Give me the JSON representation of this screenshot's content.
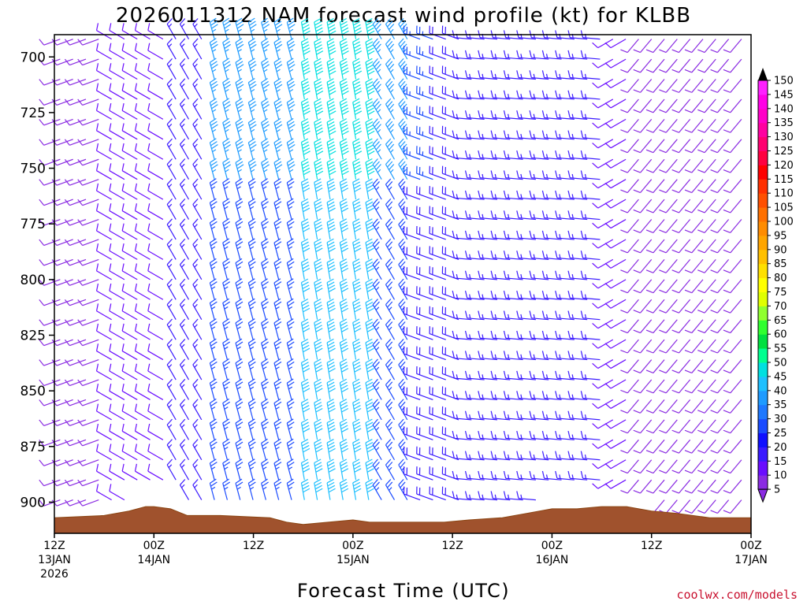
{
  "chart_data": {
    "type": "wind-barb profile",
    "title": "2026011312 NAM forecast wind profile (kt) for KLBB",
    "xlabel": "Forecast Time (UTC)",
    "ylabel": "",
    "y_ticks": [
      "700",
      "725",
      "750",
      "775",
      "800",
      "825",
      "850",
      "875",
      "900"
    ],
    "y_range_hpa": [
      690,
      914
    ],
    "x_ticks": [
      {
        "hour": 0,
        "line1": "12Z",
        "line2": "13JAN",
        "line3": "2026"
      },
      {
        "hour": 12,
        "line1": "00Z",
        "line2": "14JAN",
        "line3": ""
      },
      {
        "hour": 24,
        "line1": "12Z",
        "line2": "",
        "line3": ""
      },
      {
        "hour": 36,
        "line1": "00Z",
        "line2": "15JAN",
        "line3": ""
      },
      {
        "hour": 48,
        "line1": "12Z",
        "line2": "",
        "line3": ""
      },
      {
        "hour": 60,
        "line1": "00Z",
        "line2": "16JAN",
        "line3": ""
      },
      {
        "hour": 72,
        "line1": "12Z",
        "line2": "",
        "line3": ""
      },
      {
        "hour": 84,
        "line1": "00Z",
        "line2": "17JAN",
        "line3": ""
      }
    ],
    "x_range_hours": [
      0,
      84
    ],
    "colorbar": {
      "label_values": [
        "5",
        "10",
        "15",
        "20",
        "25",
        "30",
        "35",
        "40",
        "45",
        "50",
        "55",
        "60",
        "65",
        "70",
        "75",
        "80",
        "85",
        "90",
        "95",
        "100",
        "105",
        "110",
        "115",
        "120",
        "125",
        "130",
        "135",
        "140",
        "145",
        "150"
      ],
      "colors": [
        "#8a2be2",
        "#6a0dff",
        "#3a1aff",
        "#1010ff",
        "#1a4bff",
        "#1e78ff",
        "#1e9bff",
        "#1ec0ff",
        "#00e0e0",
        "#00ff90",
        "#00e040",
        "#30ff30",
        "#90ff30",
        "#e0ff00",
        "#ffff00",
        "#ffe000",
        "#ffc000",
        "#ffa500",
        "#ff8c00",
        "#ff7000",
        "#ff5000",
        "#ff3000",
        "#ff0000",
        "#ff0040",
        "#ff0070",
        "#ff00a0",
        "#ff00c8",
        "#ff00e6",
        "#ff20ff"
      ]
    },
    "terrain_top_hpa": [
      [
        0,
        907
      ],
      [
        6,
        906
      ],
      [
        9,
        904
      ],
      [
        11,
        902
      ],
      [
        12,
        902
      ],
      [
        14,
        903
      ],
      [
        16,
        906
      ],
      [
        20,
        906
      ],
      [
        26,
        907
      ],
      [
        28,
        909
      ],
      [
        30,
        910
      ],
      [
        33,
        909
      ],
      [
        36,
        908
      ],
      [
        38,
        909
      ],
      [
        42,
        909
      ],
      [
        47,
        909
      ],
      [
        50,
        908
      ],
      [
        54,
        907
      ],
      [
        57,
        905
      ],
      [
        60,
        903
      ],
      [
        63,
        903
      ],
      [
        66,
        902
      ],
      [
        69,
        902
      ],
      [
        72,
        904
      ],
      [
        75,
        905
      ],
      [
        79,
        907
      ],
      [
        84,
        907
      ]
    ],
    "wind_regimes": [
      {
        "h0": 0,
        "h1": 6,
        "dir": 250,
        "spd": 9
      },
      {
        "h0": 6,
        "h1": 14,
        "dir": 300,
        "spd": 12
      },
      {
        "h0": 14,
        "h1": 18,
        "dir": 330,
        "spd": 17
      },
      {
        "h0": 18,
        "h1": 30,
        "dir": 345,
        "spd": 27
      },
      {
        "h0": 30,
        "h1": 38,
        "dir": 350,
        "spd": 40
      },
      {
        "h0": 38,
        "h1": 44,
        "dir": 330,
        "spd": 27
      },
      {
        "h0": 44,
        "h1": 50,
        "dir": 290,
        "spd": 18
      },
      {
        "h0": 50,
        "h1": 66,
        "dir": 275,
        "spd": 15
      },
      {
        "h0": 66,
        "h1": 70,
        "dir": 240,
        "spd": 12
      },
      {
        "h0": 70,
        "h1": 84,
        "dir": 220,
        "spd": 9
      }
    ],
    "credit": "coolwx.com/models"
  }
}
